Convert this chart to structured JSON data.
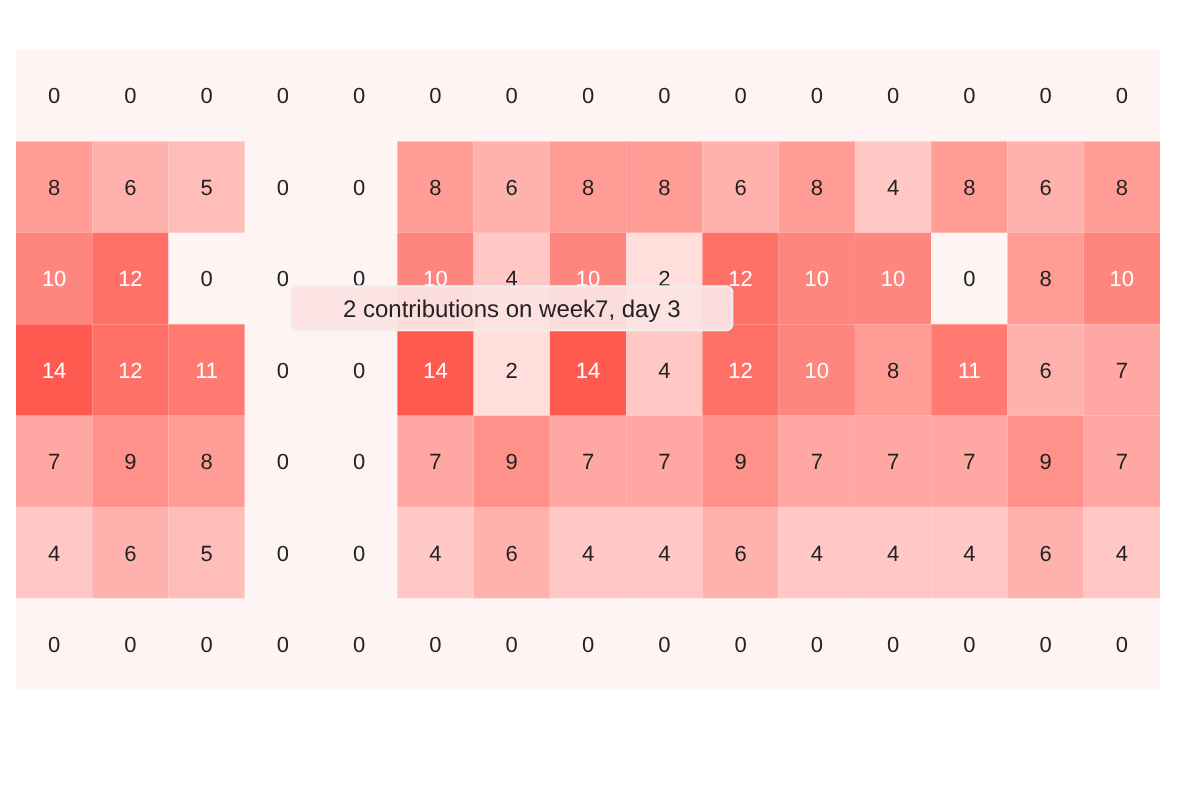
{
  "chart_data": {
    "type": "heatmap",
    "categories": [
      null,
      null,
      null,
      null,
      null,
      null,
      null,
      null,
      null,
      null,
      null,
      null,
      null,
      null,
      null
    ],
    "y_categories": [
      null,
      null,
      null,
      null,
      null,
      null,
      null
    ],
    "cells": [
      [
        0,
        0,
        0,
        0,
        0,
        0,
        0,
        0,
        0,
        0,
        0,
        0,
        0,
        0,
        0
      ],
      [
        8,
        6,
        5,
        0,
        0,
        8,
        6,
        8,
        8,
        6,
        8,
        4,
        8,
        6,
        8
      ],
      [
        10,
        12,
        0,
        0,
        0,
        10,
        4,
        10,
        2,
        12,
        10,
        10,
        0,
        8,
        10
      ],
      [
        14,
        12,
        11,
        0,
        0,
        14,
        2,
        14,
        4,
        12,
        10,
        8,
        11,
        6,
        7
      ],
      [
        7,
        9,
        8,
        0,
        0,
        7,
        9,
        7,
        7,
        9,
        7,
        7,
        7,
        9,
        7
      ],
      [
        4,
        6,
        5,
        0,
        0,
        4,
        6,
        4,
        4,
        6,
        4,
        4,
        4,
        6,
        4
      ],
      [
        0,
        0,
        0,
        0,
        0,
        0,
        0,
        0,
        0,
        0,
        0,
        0,
        0,
        0,
        0
      ]
    ],
    "data_labels": true,
    "annotations": [
      "2 contributions on week7, day 3"
    ]
  }
}
